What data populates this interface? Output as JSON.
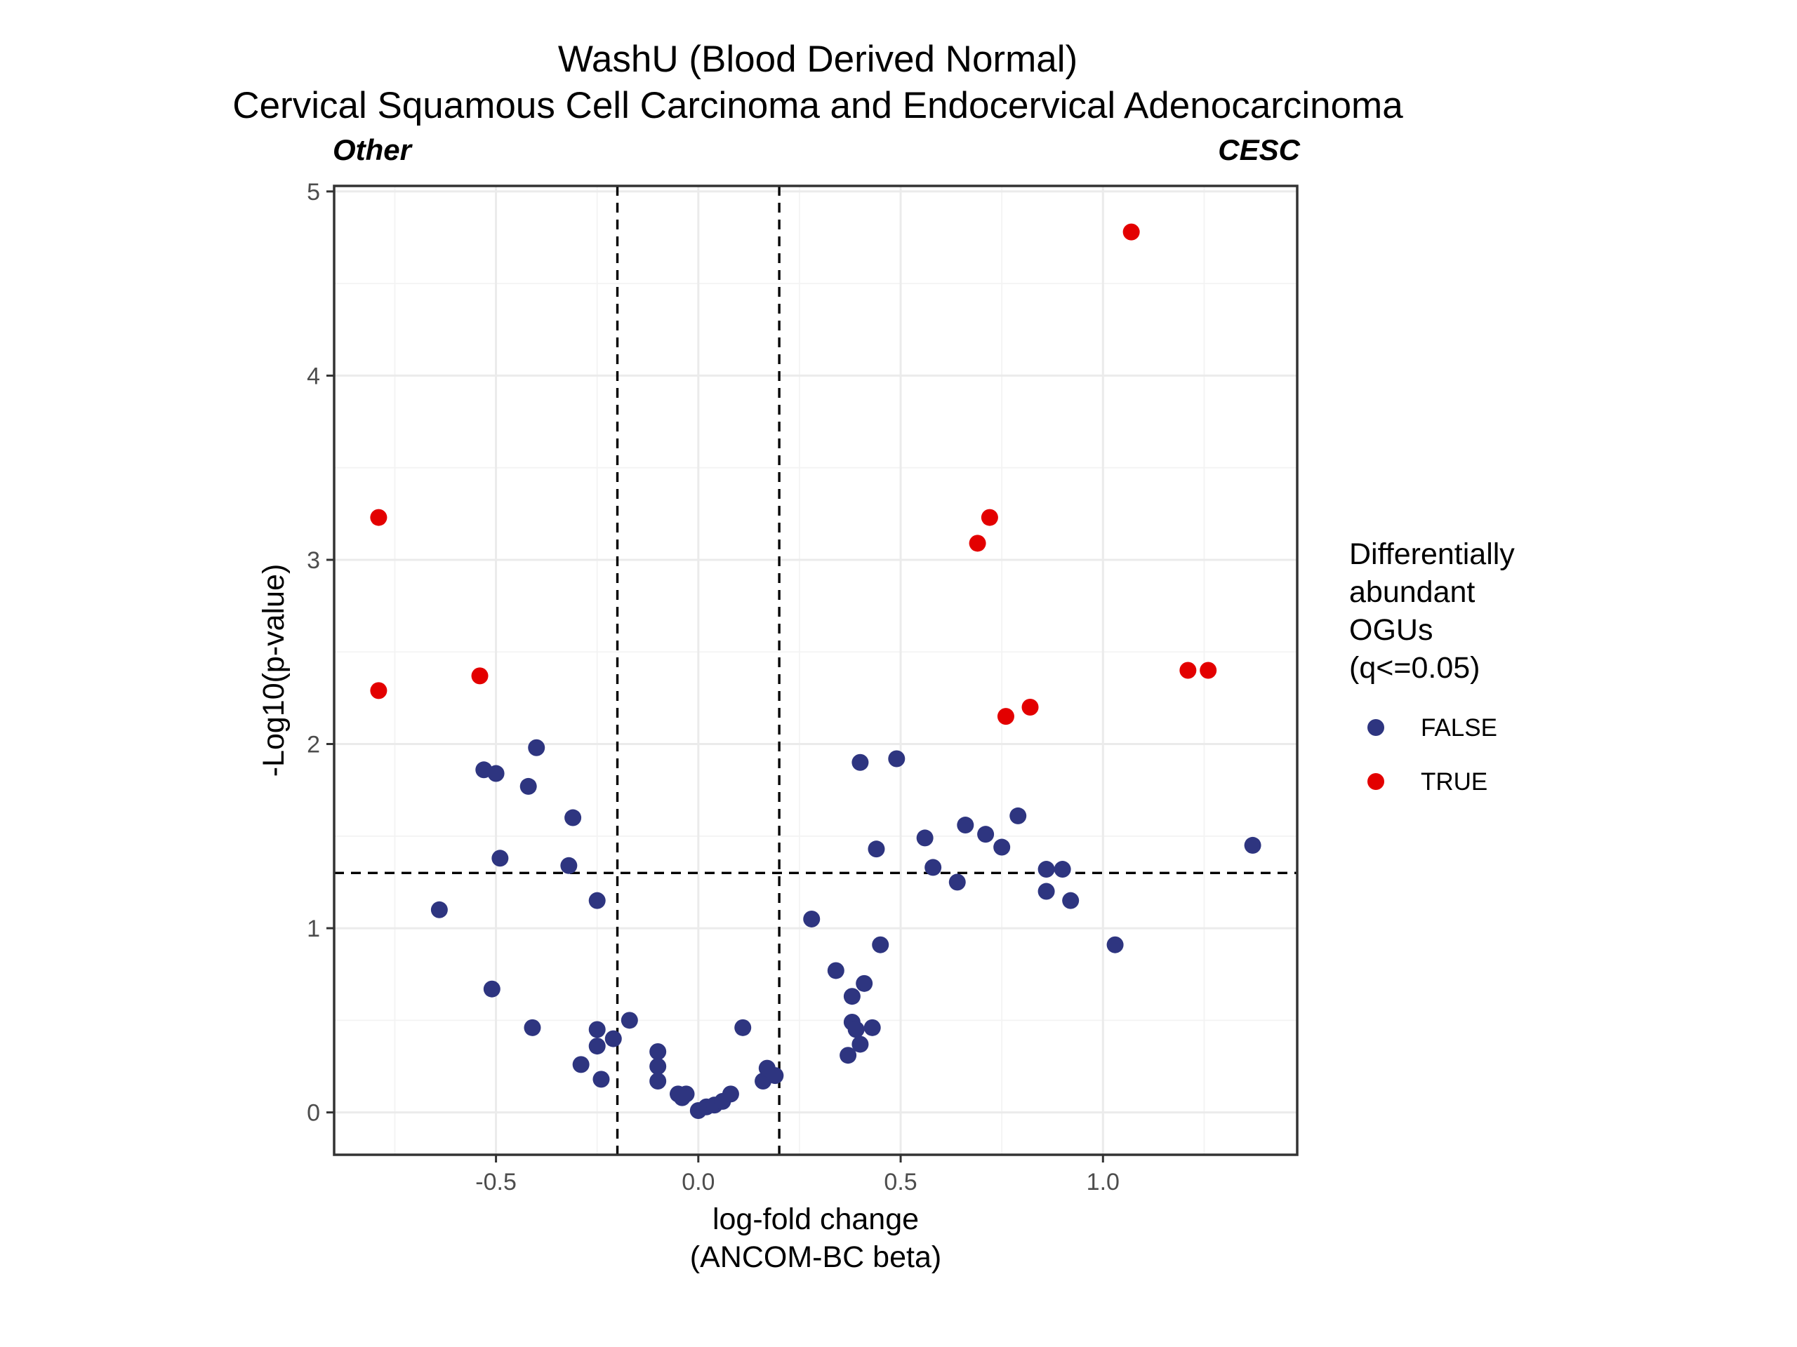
{
  "chart_data": {
    "type": "scatter",
    "title": "WashU (Blood Derived Normal)",
    "subtitle": "Cervical Squamous Cell Carcinoma and Endocervical Adenocarcinoma",
    "left_annotation": "Other",
    "right_annotation": "CESC",
    "xlabel": "log-fold change\n(ANCOM-BC beta)",
    "ylabel": "-Log10(p-value)",
    "xlim": [
      -0.9,
      1.48
    ],
    "ylim": [
      -0.23,
      5.03
    ],
    "x_ticks": [
      -0.5,
      0.0,
      0.5,
      1.0
    ],
    "x_tick_labels": [
      "-0.5",
      "0.0",
      "0.5",
      "1.0"
    ],
    "y_ticks": [
      0,
      1,
      2,
      3,
      4,
      5
    ],
    "y_tick_labels": [
      "0",
      "1",
      "2",
      "3",
      "4",
      "5"
    ],
    "grid": true,
    "reference_lines": {
      "vertical": [
        -0.2,
        0.2
      ],
      "horizontal": [
        1.3
      ]
    },
    "legend": {
      "title": "Differentially\nabundant\nOGUs\n(q<=0.05)",
      "placement": "right",
      "entries": [
        {
          "label": "FALSE",
          "color": "#2e3580"
        },
        {
          "label": "TRUE",
          "color": "#e30000"
        }
      ]
    },
    "series": [
      {
        "name": "FALSE",
        "color": "#2e3580",
        "points": [
          [
            -0.53,
            1.86
          ],
          [
            -0.5,
            1.84
          ],
          [
            -0.4,
            1.98
          ],
          [
            -0.42,
            1.77
          ],
          [
            -0.31,
            1.6
          ],
          [
            -0.49,
            1.38
          ],
          [
            -0.32,
            1.34
          ],
          [
            -0.25,
            1.15
          ],
          [
            -0.64,
            1.1
          ],
          [
            -0.51,
            0.67
          ],
          [
            -0.41,
            0.46
          ],
          [
            -0.17,
            0.5
          ],
          [
            -0.25,
            0.45
          ],
          [
            -0.21,
            0.4
          ],
          [
            -0.25,
            0.36
          ],
          [
            -0.29,
            0.26
          ],
          [
            -0.24,
            0.18
          ],
          [
            -0.1,
            0.33
          ],
          [
            -0.1,
            0.25
          ],
          [
            -0.1,
            0.17
          ],
          [
            -0.05,
            0.1
          ],
          [
            -0.03,
            0.1
          ],
          [
            -0.04,
            0.08
          ],
          [
            0.0,
            0.01
          ],
          [
            0.02,
            0.03
          ],
          [
            0.04,
            0.04
          ],
          [
            0.06,
            0.06
          ],
          [
            0.08,
            0.1
          ],
          [
            0.11,
            0.46
          ],
          [
            0.16,
            0.17
          ],
          [
            0.17,
            0.24
          ],
          [
            0.19,
            0.2
          ],
          [
            0.28,
            1.05
          ],
          [
            0.34,
            0.77
          ],
          [
            0.38,
            0.63
          ],
          [
            0.38,
            0.49
          ],
          [
            0.39,
            0.45
          ],
          [
            0.41,
            0.7
          ],
          [
            0.43,
            0.46
          ],
          [
            0.45,
            0.91
          ],
          [
            0.37,
            0.31
          ],
          [
            0.4,
            0.37
          ],
          [
            0.4,
            1.9
          ],
          [
            0.49,
            1.92
          ],
          [
            0.44,
            1.43
          ],
          [
            0.56,
            1.49
          ],
          [
            0.58,
            1.33
          ],
          [
            0.64,
            1.25
          ],
          [
            0.66,
            1.56
          ],
          [
            0.71,
            1.51
          ],
          [
            0.75,
            1.44
          ],
          [
            0.79,
            1.61
          ],
          [
            0.86,
            1.32
          ],
          [
            0.9,
            1.32
          ],
          [
            0.86,
            1.2
          ],
          [
            0.92,
            1.15
          ],
          [
            1.03,
            0.91
          ],
          [
            1.37,
            1.45
          ]
        ]
      },
      {
        "name": "TRUE",
        "color": "#e30000",
        "points": [
          [
            -0.79,
            3.23
          ],
          [
            -0.79,
            2.29
          ],
          [
            -0.54,
            2.37
          ],
          [
            0.69,
            3.09
          ],
          [
            0.72,
            3.23
          ],
          [
            0.76,
            2.15
          ],
          [
            0.82,
            2.2
          ],
          [
            1.07,
            4.78
          ],
          [
            1.21,
            2.4
          ],
          [
            1.26,
            2.4
          ]
        ]
      }
    ]
  }
}
